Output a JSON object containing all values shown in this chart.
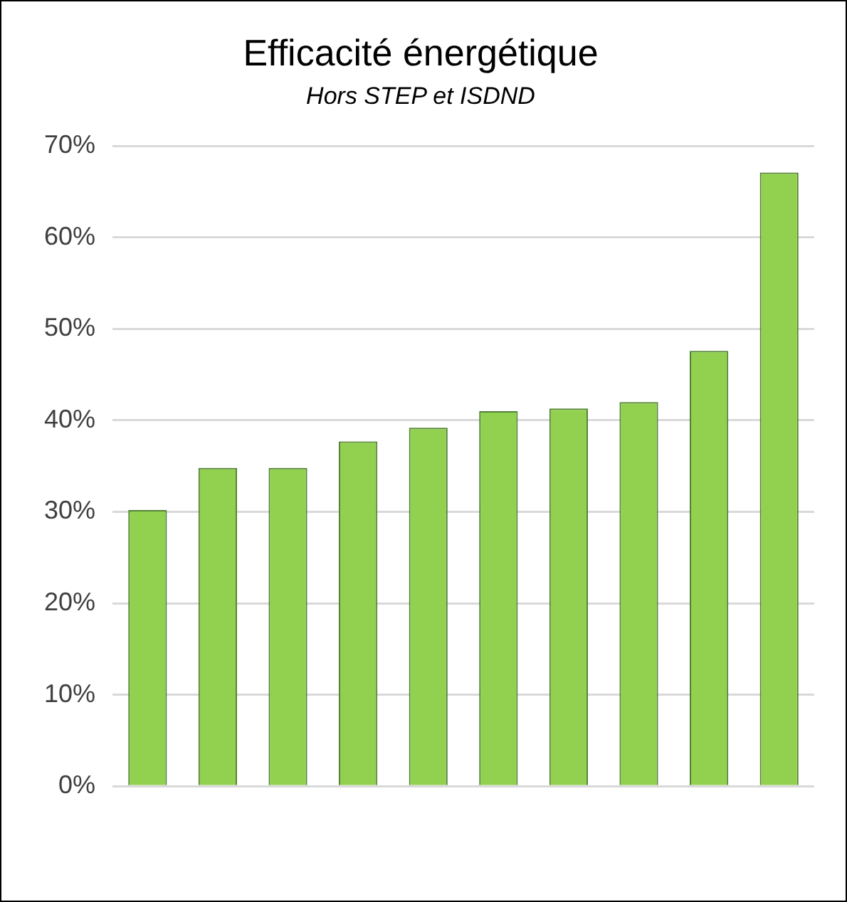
{
  "chart_data": {
    "type": "bar",
    "title": "Efficacité énergétique",
    "subtitle": "Hors STEP et ISDND",
    "categories": [
      null,
      null,
      null,
      null,
      null,
      null,
      null,
      null,
      null,
      null
    ],
    "values": [
      30.2,
      34.8,
      34.8,
      37.7,
      39.2,
      41.0,
      41.3,
      42.0,
      47.6,
      67.1
    ],
    "color": "#92d050",
    "ylim": [
      0,
      70
    ],
    "yticks": [
      {
        "value": 0,
        "label": "0%"
      },
      {
        "value": 10,
        "label": "10%"
      },
      {
        "value": 20,
        "label": "20%"
      },
      {
        "value": 30,
        "label": "30%"
      },
      {
        "value": 40,
        "label": "40%"
      },
      {
        "value": 50,
        "label": "50%"
      },
      {
        "value": 60,
        "label": "60%"
      },
      {
        "value": 70,
        "label": "70%"
      }
    ],
    "grid": "y",
    "legend": false
  }
}
